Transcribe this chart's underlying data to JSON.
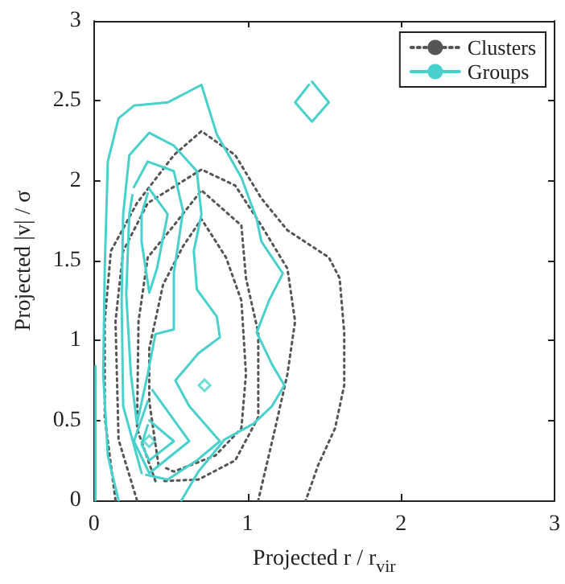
{
  "chart_data": {
    "type": "line",
    "xlabel": "Projected r / r$_{vir}$",
    "ylabel": "Projected |v| / σ",
    "xlim": [
      0,
      3
    ],
    "ylim": [
      0,
      3
    ],
    "xticks": [
      0,
      1,
      2,
      3
    ],
    "yticks": [
      0,
      0.5,
      1,
      1.5,
      2,
      2.5,
      3
    ],
    "legend": "top right",
    "marker": "none",
    "series": [
      {
        "name": "Clusters",
        "color": "#555555",
        "line_style": "dotted",
        "x": [
          0.14,
          0.07,
          0.07,
          0.11,
          0.28,
          0.52,
          0.7,
          0.92,
          1.09,
          1.26,
          1.53,
          1.6,
          1.63,
          1.63,
          1.57,
          1.46,
          1.38
        ],
        "values": [
          0,
          0.52,
          1.12,
          1.56,
          1.86,
          2.16,
          2.31,
          2.16,
          1.89,
          1.69,
          1.52,
          1.39,
          1.05,
          0.72,
          0.45,
          0.22,
          0
        ]
      },
      {
        "color": "#555555",
        "line_style": "dotted",
        "x": [
          0.28,
          0.16,
          0.14,
          0.19,
          0.35,
          0.7,
          0.92,
          1.09,
          1.26,
          1.31,
          1.26,
          1.18,
          1.07
        ],
        "values": [
          0,
          0.38,
          1.12,
          1.56,
          1.86,
          2.07,
          1.97,
          1.72,
          1.45,
          1.12,
          0.79,
          0.45,
          0
        ]
      },
      {
        "color": "#555555",
        "line_style": "dotted",
        "x": [
          0.4,
          0.28,
          0.29,
          0.35,
          0.52,
          0.7,
          0.96,
          0.99,
          1.07,
          1.07,
          0.92,
          0.68,
          0.44
        ],
        "values": [
          0.12,
          0.45,
          1.12,
          1.52,
          1.72,
          1.94,
          1.72,
          1.39,
          1.05,
          0.52,
          0.25,
          0.13,
          0.12
        ]
      },
      {
        "color": "#555555",
        "line_style": "dotted",
        "x": [
          0.42,
          0.36,
          0.36,
          0.45,
          0.58,
          0.7,
          0.86,
          0.96,
          0.99,
          0.96,
          0.79,
          0.52,
          0.45
        ],
        "values": [
          0.22,
          0.62,
          0.95,
          1.35,
          1.59,
          1.76,
          1.52,
          1.25,
          0.79,
          0.45,
          0.28,
          0.18,
          0.21
        ]
      },
      {
        "name": "Groups",
        "color": "#48d1cc",
        "line_style": "solid",
        "x": [
          0.16,
          0.09,
          0.06,
          0.07,
          0.09,
          0.16,
          0.26,
          0.48,
          0.7,
          0.8,
          0.96,
          1.06,
          1.09,
          1.23,
          1.14,
          1.06,
          1.16,
          1.24,
          1.16,
          1.04,
          0.85,
          0.68,
          0.57
        ],
        "values": [
          0,
          0.28,
          0.79,
          1.45,
          2.12,
          2.39,
          2.47,
          2.49,
          2.6,
          2.29,
          2.02,
          1.76,
          1.62,
          1.42,
          1.25,
          1.05,
          0.85,
          0.72,
          0.59,
          0.48,
          0.38,
          0.18,
          0
        ]
      },
      {
        "color": "#48d1cc",
        "line_style": "solid",
        "x": [
          0.01,
          0.01
        ],
        "values": [
          0.84,
          0
        ]
      },
      {
        "color": "#48d1cc",
        "line_style": "solid",
        "x": [
          0.31,
          0.19,
          0.18,
          0.19,
          0.23,
          0.36,
          0.52,
          0.67,
          0.7,
          0.65,
          0.67,
          0.8,
          0.82,
          0.68,
          0.53,
          0.62,
          0.82,
          0.67,
          0.48,
          0.34
        ],
        "values": [
          0.17,
          0.59,
          1.25,
          1.79,
          2.16,
          2.3,
          2.22,
          2.06,
          1.79,
          1.56,
          1.32,
          1.15,
          1.02,
          0.92,
          0.75,
          0.59,
          0.37,
          0.25,
          0.13,
          0.16
        ]
      },
      {
        "color": "#48d1cc",
        "line_style": "solid",
        "x": [
          0.26,
          0.35,
          0.52,
          0.58,
          0.52,
          0.52,
          0.4,
          0.35,
          0.28,
          0.24,
          0.21,
          0.23,
          0.25
        ],
        "values": [
          1.96,
          2.12,
          2.06,
          1.81,
          1.42,
          1.07,
          1.04,
          0.79,
          0.48,
          0.79,
          1.29,
          1.79,
          1.91
        ]
      },
      {
        "color": "#48d1cc",
        "line_style": "solid",
        "x": [
          0.38,
          0.62,
          0.36,
          0.26,
          0.35
        ],
        "values": [
          0.69,
          0.37,
          0.17,
          0.37,
          0.62
        ]
      },
      {
        "color": "#48d1cc",
        "line_style": "solid",
        "x": [
          0.36,
          0.48,
          0.41,
          0.36,
          0.31,
          0.31,
          0.35
        ],
        "values": [
          1.95,
          1.79,
          1.45,
          1.3,
          1.62,
          1.79,
          1.92
        ]
      },
      {
        "color": "#48d1cc",
        "line_style": "solid",
        "x": [
          0.36,
          0.52,
          0.36,
          0.31,
          0.35
        ],
        "values": [
          0.5,
          0.37,
          0.25,
          0.35,
          0.47
        ]
      },
      {
        "type": "scatter",
        "marker": "diamond",
        "color": "#48d1cc",
        "x": [
          0.36,
          0.72
        ],
        "values": [
          0.37,
          0.72
        ]
      },
      {
        "color": "#48d1cc",
        "line_style": "solid",
        "x": [
          1.42,
          1.53,
          1.42,
          1.31,
          1.4
        ],
        "values": [
          2.62,
          2.49,
          2.37,
          2.49,
          2.6
        ]
      }
    ]
  }
}
